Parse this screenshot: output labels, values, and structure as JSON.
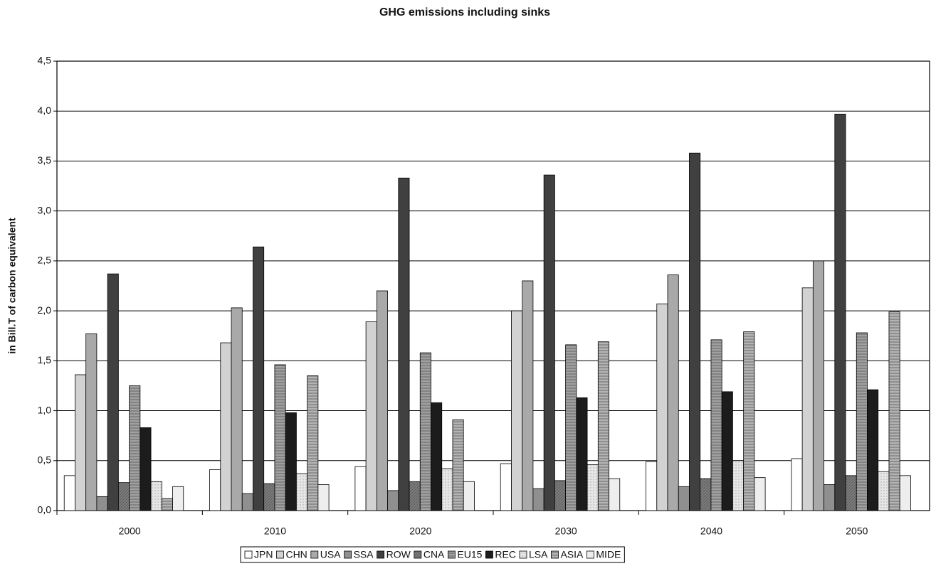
{
  "chart_data": {
    "type": "bar",
    "title": "GHG emissions including sinks",
    "y_label": "in Bill.T of carbon equivalent",
    "categories": [
      "2000",
      "2010",
      "2020",
      "2030",
      "2040",
      "2050"
    ],
    "series": [
      {
        "name": "JPN",
        "color": "#ffffff",
        "values": [
          0.35,
          0.41,
          0.44,
          0.47,
          0.49,
          0.52
        ]
      },
      {
        "name": "CHN",
        "color": "#d2d2d2",
        "values": [
          1.36,
          1.68,
          1.89,
          2.0,
          2.07,
          2.23
        ]
      },
      {
        "name": "USA",
        "color": "#a9a9a9",
        "values": [
          1.77,
          2.03,
          2.2,
          2.3,
          2.36,
          2.5
        ]
      },
      {
        "name": "SSA",
        "color": "#8f8f8f",
        "values": [
          0.14,
          0.17,
          0.2,
          0.22,
          0.24,
          0.26
        ]
      },
      {
        "name": "ROW",
        "color": "#404040",
        "values": [
          2.37,
          2.64,
          3.33,
          3.36,
          3.58,
          3.97
        ]
      },
      {
        "name": "CNA",
        "color": "#7d7d7d",
        "values": [
          0.28,
          0.27,
          0.29,
          0.3,
          0.32,
          0.35
        ]
      },
      {
        "name": "EU15",
        "color": "#a0a0a0",
        "values": [
          1.25,
          1.46,
          1.58,
          1.66,
          1.71,
          1.78
        ]
      },
      {
        "name": "REC",
        "color": "#1c1c1c",
        "values": [
          0.83,
          0.98,
          1.08,
          1.13,
          1.19,
          1.21
        ]
      },
      {
        "name": "LSA",
        "color": "#e6e6e6",
        "values": [
          0.29,
          0.37,
          0.42,
          0.46,
          0.5,
          0.39
        ]
      },
      {
        "name": "ASIA",
        "color": "#b3b3b3",
        "values": [
          0.12,
          1.35,
          0.91,
          1.69,
          1.79,
          1.99
        ]
      },
      {
        "name": "MIDE",
        "color": "#eeeeee",
        "values": [
          0.24,
          0.26,
          0.29,
          0.32,
          0.33,
          0.35
        ]
      }
    ],
    "ylim": [
      0,
      4.5
    ],
    "yticks": [
      {
        "value": 0,
        "label": "0,0"
      },
      {
        "value": 0.5,
        "label": "0,5"
      },
      {
        "value": 1,
        "label": "1,0"
      },
      {
        "value": 1.5,
        "label": "1,5"
      },
      {
        "value": 2,
        "label": "2,0"
      },
      {
        "value": 2.5,
        "label": "2,5"
      },
      {
        "value": 3,
        "label": "3,0"
      },
      {
        "value": 3.5,
        "label": "3,5"
      },
      {
        "value": 4,
        "label": "4,0"
      },
      {
        "value": 4.5,
        "label": "4,5"
      }
    ],
    "grid": true
  }
}
